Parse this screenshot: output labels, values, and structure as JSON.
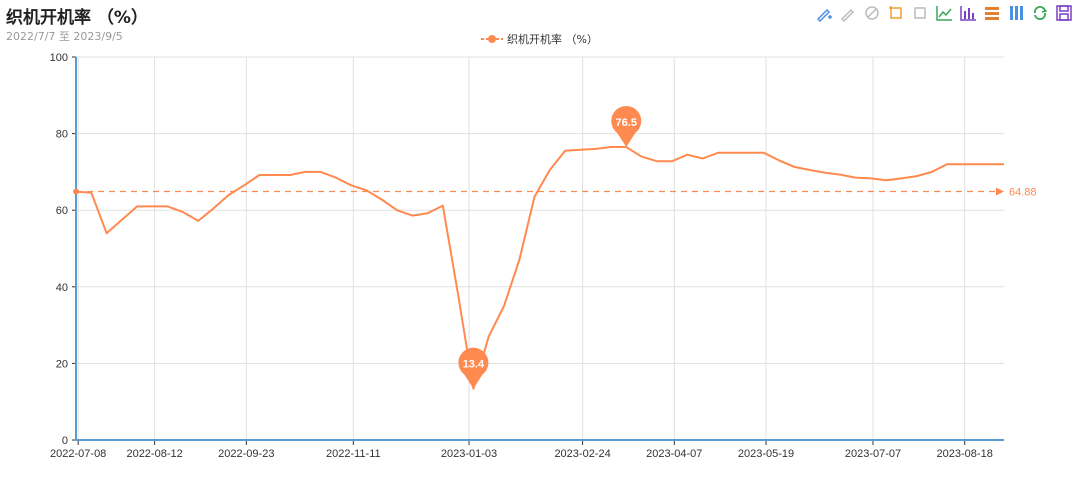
{
  "header": {
    "title": "织机开机率 （%）",
    "date_range": "2022/7/7 至 2023/9/5"
  },
  "legend": {
    "label": "织机开机率 （%）"
  },
  "toolbox": [
    {
      "name": "mark-pen-icon",
      "color": "#4a90e2"
    },
    {
      "name": "mark-undo-icon",
      "color": "#bbbbbb"
    },
    {
      "name": "mark-clear-icon",
      "color": "#bbbbbb"
    },
    {
      "name": "data-zoom-icon",
      "color": "#f0a030"
    },
    {
      "name": "data-zoom-reset-icon",
      "color": "#bbbbbb"
    },
    {
      "name": "line-chart-icon",
      "color": "#3aa757"
    },
    {
      "name": "bar-chart-icon",
      "color": "#7a3fc0"
    },
    {
      "name": "stack-icon",
      "color": "#e08030"
    },
    {
      "name": "tiled-icon",
      "color": "#4a90e2"
    },
    {
      "name": "restore-icon",
      "color": "#3aa757"
    },
    {
      "name": "save-image-icon",
      "color": "#7a3fc0"
    }
  ],
  "chart_data": {
    "type": "line",
    "series": [
      {
        "name": "织机开机率 （%）",
        "color": "#ff8a50",
        "x": [
          "2022-07-07",
          "2022-07-14",
          "2022-07-21",
          "2022-07-28",
          "2022-08-04",
          "2022-08-11",
          "2022-08-18",
          "2022-08-25",
          "2022-09-01",
          "2022-09-08",
          "2022-09-15",
          "2022-09-22",
          "2022-09-29",
          "2022-10-06",
          "2022-10-13",
          "2022-10-20",
          "2022-10-27",
          "2022-11-03",
          "2022-11-10",
          "2022-11-17",
          "2022-11-24",
          "2022-12-01",
          "2022-12-08",
          "2022-12-15",
          "2022-12-22",
          "2022-12-29",
          "2023-01-05",
          "2023-01-12",
          "2023-01-19",
          "2023-01-26",
          "2023-02-02",
          "2023-02-09",
          "2023-02-16",
          "2023-02-23",
          "2023-03-02",
          "2023-03-09",
          "2023-03-16",
          "2023-03-23",
          "2023-03-30",
          "2023-04-06",
          "2023-04-13",
          "2023-04-20",
          "2023-04-27",
          "2023-05-04",
          "2023-05-11",
          "2023-05-18",
          "2023-05-25",
          "2023-06-01",
          "2023-06-08",
          "2023-06-15",
          "2023-06-22",
          "2023-06-29",
          "2023-07-06",
          "2023-07-13",
          "2023-07-20",
          "2023-07-27",
          "2023-08-03",
          "2023-08-10",
          "2023-08-17",
          "2023-08-24",
          "2023-08-31",
          "2023-09-05"
        ],
        "values": [
          64.8,
          64.6,
          54.0,
          57.5,
          61.0,
          61.0,
          61.0,
          59.5,
          57.2,
          60.5,
          64.0,
          66.5,
          69.2,
          69.2,
          69.2,
          70.0,
          70.0,
          68.5,
          66.5,
          65.2,
          62.8,
          60.0,
          58.6,
          59.2,
          61.2,
          38.0,
          13.4,
          27.0,
          35.0,
          47.0,
          63.5,
          70.5,
          75.5,
          75.8,
          76.0,
          76.5,
          76.5,
          74.0,
          72.8,
          72.8,
          74.5,
          73.5,
          75.0,
          75.0,
          75.0,
          75.0,
          73.0,
          71.3,
          70.5,
          69.8,
          69.3,
          68.5,
          68.3,
          67.8,
          68.3,
          68.9,
          70.0,
          72.0,
          72.0,
          72.0,
          72.0,
          72.0
        ]
      }
    ],
    "xticks": [
      "2022-07-08",
      "2022-08-12",
      "2022-09-23",
      "2022-11-11",
      "2023-01-03",
      "2023-02-24",
      "2023-04-07",
      "2023-05-19",
      "2023-07-07",
      "2023-08-18"
    ],
    "xlim": [
      "2022-07-07",
      "2023-09-05"
    ],
    "ylim": [
      0,
      100
    ],
    "yticks": [
      0,
      20,
      40,
      60,
      80,
      100
    ],
    "grid": true,
    "legend_position": "top-center",
    "mark_points": [
      {
        "label": "76.5",
        "x": "2023-03-16",
        "y": 76.5
      },
      {
        "label": "13.4",
        "x": "2023-01-05",
        "y": 13.4
      }
    ],
    "mark_line": {
      "label": "64.88",
      "y": 64.88
    }
  }
}
